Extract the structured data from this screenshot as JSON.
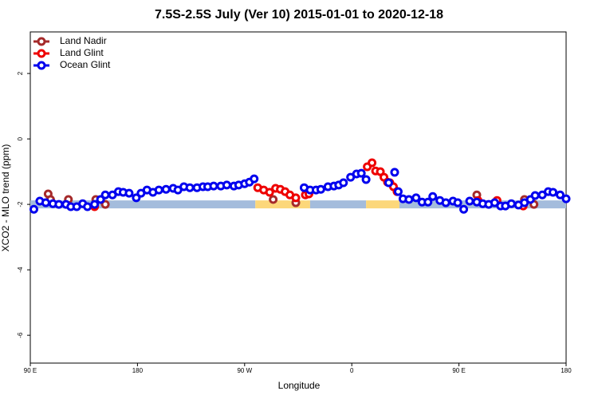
{
  "chart_data": {
    "type": "scatter",
    "title": "7.5S-2.5S July (Ver 10)   2015-01-01 to 2020-12-18",
    "x_label": "Longitude",
    "y_label": "XCO2 - MLO trend (ppm)",
    "xlim": [
      90,
      540
    ],
    "ylim": [
      -6.85,
      3.27
    ],
    "xticks": [
      {
        "value": 90,
        "label": "90 E"
      },
      {
        "value": 180,
        "label": "180"
      },
      {
        "value": 270,
        "label": "90 W"
      },
      {
        "value": 360,
        "label": "0"
      },
      {
        "value": 450,
        "label": "90 E"
      },
      {
        "value": 540,
        "label": "180"
      }
    ],
    "yticks": [
      2,
      0,
      -2,
      -4,
      -6
    ],
    "legend": "top-left",
    "surface_band": {
      "y": -2,
      "segments": [
        {
          "x": [
            90,
            279
          ],
          "color": "#a4bcdc"
        },
        {
          "x": [
            279,
            325
          ],
          "color": "#fcd77a"
        },
        {
          "x": [
            325,
            372
          ],
          "color": "#a4bcdc"
        },
        {
          "x": [
            372,
            400
          ],
          "color": "#fcd77a"
        },
        {
          "x": [
            400,
            540
          ],
          "color": "#a4bcdc"
        }
      ]
    },
    "series": [
      {
        "name": "Land Nadir",
        "color": "#a52a2a",
        "x": [
          105,
          107,
          122,
          145,
          153,
          294,
          313,
          465,
          505,
          513
        ],
        "values": [
          -1.68,
          -1.85,
          -1.85,
          -1.85,
          -2.0,
          -1.85,
          -1.95,
          -1.71,
          -1.85,
          -2.0
        ]
      },
      {
        "name": "Land Glint",
        "color": "#ee0000",
        "x": [
          144,
          281,
          286,
          291,
          296,
          300,
          304,
          308,
          313,
          321,
          324,
          373,
          377,
          380,
          384,
          387,
          390,
          392,
          395,
          398,
          466,
          482,
          504
        ],
        "values": [
          -2.07,
          -1.49,
          -1.56,
          -1.63,
          -1.51,
          -1.54,
          -1.61,
          -1.71,
          -1.8,
          -1.71,
          -1.68,
          -0.85,
          -0.73,
          -0.98,
          -1.0,
          -1.17,
          -1.32,
          -1.34,
          -1.46,
          -1.61,
          -1.88,
          -1.88,
          -2.05
        ]
      },
      {
        "name": "Ocean Glint",
        "color": "#0000ee",
        "x": [
          93,
          98,
          103,
          109,
          114,
          120,
          124,
          129,
          134,
          138,
          144,
          149,
          153,
          159,
          164,
          168,
          173,
          179,
          183,
          188,
          193,
          198,
          204,
          210,
          214,
          219,
          224,
          230,
          235,
          239,
          244,
          250,
          255,
          261,
          265,
          270,
          274,
          278,
          320,
          325,
          330,
          334,
          340,
          345,
          349,
          353,
          359,
          364,
          368,
          372,
          391,
          396,
          399,
          403,
          408,
          414,
          419,
          424,
          428,
          434,
          439,
          445,
          449,
          454,
          459,
          465,
          470,
          475,
          480,
          485,
          489,
          494,
          500,
          505,
          510,
          514,
          520,
          525,
          529,
          535,
          540
        ],
        "values": [
          -2.15,
          -1.9,
          -1.95,
          -1.98,
          -2.0,
          -2.0,
          -2.07,
          -2.07,
          -1.98,
          -2.07,
          -2.0,
          -1.85,
          -1.71,
          -1.71,
          -1.61,
          -1.63,
          -1.66,
          -1.8,
          -1.66,
          -1.56,
          -1.63,
          -1.56,
          -1.54,
          -1.51,
          -1.56,
          -1.46,
          -1.49,
          -1.49,
          -1.46,
          -1.46,
          -1.44,
          -1.44,
          -1.41,
          -1.44,
          -1.41,
          -1.37,
          -1.32,
          -1.22,
          -1.49,
          -1.56,
          -1.56,
          -1.54,
          -1.46,
          -1.44,
          -1.41,
          -1.34,
          -1.17,
          -1.07,
          -1.05,
          -1.24,
          -1.34,
          -1.02,
          -1.61,
          -1.83,
          -1.85,
          -1.8,
          -1.93,
          -1.93,
          -1.76,
          -1.88,
          -1.95,
          -1.9,
          -1.95,
          -2.15,
          -1.9,
          -1.93,
          -1.98,
          -2.0,
          -1.95,
          -2.05,
          -2.05,
          -1.98,
          -2.02,
          -1.95,
          -1.85,
          -1.73,
          -1.71,
          -1.61,
          -1.63,
          -1.71,
          -1.83
        ]
      }
    ]
  }
}
